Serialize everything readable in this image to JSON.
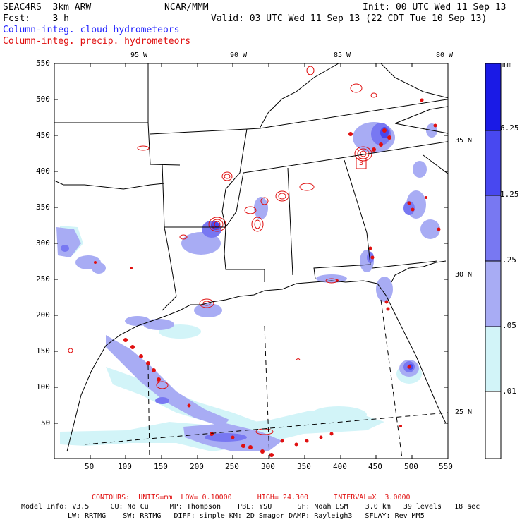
{
  "header": {
    "line1_left": "SEAC4RS  3km ARW",
    "line1_mid": "NCAR/MMM",
    "line1_right": "Init: 00 UTC Wed 11 Sep 13",
    "line2_left": "Fcst:    3 h",
    "line2_right": "Valid: 03 UTC Wed 11 Sep 13 (22 CDT Tue 10 Sep 13)",
    "line3": "Column-integ. cloud hydrometeors",
    "line4": "Column-integ. precip. hydrometeors"
  },
  "axes": {
    "x_ticks": [
      "50",
      "100",
      "150",
      "200",
      "250",
      "300",
      "350",
      "400",
      "450",
      "500",
      "550"
    ],
    "y_ticks": [
      "50",
      "100",
      "150",
      "200",
      "250",
      "300",
      "350",
      "400",
      "450",
      "500",
      "550"
    ],
    "lon_labels": [
      "95 W",
      "90 W",
      "85 W",
      "80 W"
    ],
    "lat_labels": [
      "35 N",
      "30 N",
      "25 N"
    ]
  },
  "colorbar": {
    "unit": "mm",
    "labels": [
      "6.25",
      "1.25",
      ".25",
      ".05",
      ".01"
    ],
    "colors": [
      "#1a1ae6",
      "#4848f0",
      "#7878f2",
      "#a8acf4",
      "#d2f4f8",
      "#ffffff"
    ]
  },
  "map_labels": {
    "box_label": "3"
  },
  "footer": {
    "contours": "CONTOURS:  UNITS=mm  LOW= 0.10000      HIGH= 24.300      INTERVAL=X  3.0000",
    "info1": "Model Info: V3.5     CU: No Cu     MP: Thompson    PBL: YSU      SF: Noah LSM    3.0 km   39 levels   18 sec",
    "info2": "LW: RRTMG    SW: RRTMG   DIFF: simple KM: 2D Smagor DAMP: Rayleigh3   SFLAY: Rev MM5"
  }
}
